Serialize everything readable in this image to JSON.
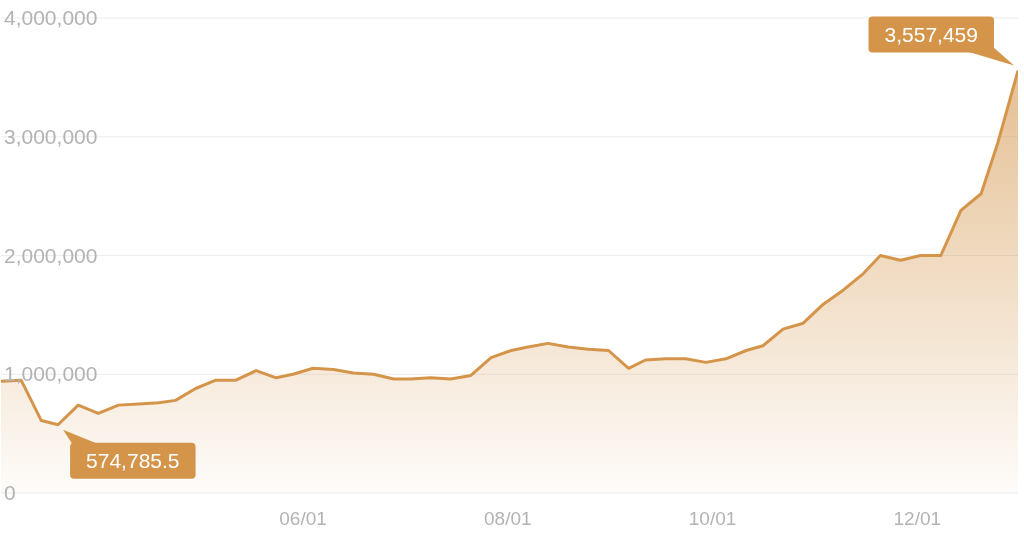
{
  "chart_data": {
    "type": "area",
    "color": "#d4954a",
    "x": [
      "--03-03",
      "--03-09",
      "--03-15",
      "--03-20",
      "--03-26",
      "--04-01",
      "--04-07",
      "--04-13",
      "--04-19",
      "--04-24",
      "--04-30",
      "--05-06",
      "--05-12",
      "--05-18",
      "--05-24",
      "--05-29",
      "--06-04",
      "--06-10",
      "--06-16",
      "--06-22",
      "--06-28",
      "--07-03",
      "--07-09",
      "--07-15",
      "--07-21",
      "--07-27",
      "--08-02",
      "--08-07",
      "--08-13",
      "--08-19",
      "--08-25",
      "--08-31",
      "--09-06",
      "--09-11",
      "--09-17",
      "--09-23",
      "--09-29",
      "--10-05",
      "--10-11",
      "--10-16",
      "--10-22",
      "--10-28",
      "--11-03",
      "--11-09",
      "--11-15",
      "--11-20",
      "--11-26",
      "--12-02",
      "--12-08",
      "--12-14",
      "--12-20",
      "--12-25",
      "--12-31"
    ],
    "values": [
      940000,
      950000,
      610000,
      574785.5,
      740000,
      670000,
      740000,
      750000,
      760000,
      780000,
      880000,
      950000,
      950000,
      1030000,
      970000,
      1000000,
      1050000,
      1040000,
      1010000,
      1000000,
      960000,
      960000,
      970000,
      960000,
      990000,
      1140000,
      1200000,
      1230000,
      1260000,
      1230000,
      1210000,
      1200000,
      1050000,
      1120000,
      1130000,
      1130000,
      1100000,
      1130000,
      1200000,
      1240000,
      1380000,
      1430000,
      1590000,
      1710000,
      1850000,
      2000000,
      1960000,
      2000000,
      2000000,
      2380000,
      2520000,
      2950000,
      3557459
    ],
    "value_labels": [
      null,
      null,
      null,
      "574,785.5",
      null,
      null,
      null,
      null,
      null,
      null,
      null,
      null,
      null,
      null,
      null,
      null,
      null,
      null,
      null,
      null,
      null,
      null,
      null,
      null,
      null,
      null,
      null,
      null,
      null,
      null,
      null,
      null,
      null,
      null,
      null,
      null,
      null,
      null,
      null,
      null,
      null,
      null,
      null,
      null,
      null,
      null,
      null,
      null,
      null,
      null,
      null,
      null,
      "3,557,459"
    ],
    "xlim": [
      "--03-03",
      "--12-31"
    ],
    "xticks": [
      {
        "value": "--06-01",
        "label": "06/01"
      },
      {
        "value": "--08-01",
        "label": "08/01"
      },
      {
        "value": "--10-01",
        "label": "10/01"
      },
      {
        "value": "--12-01",
        "label": "12/01"
      }
    ],
    "ylim": [
      0,
      4000000
    ],
    "yticks": [
      {
        "value": 0,
        "label": "0"
      },
      {
        "value": 1000000,
        "label": "1,000,000"
      },
      {
        "value": 2000000,
        "label": "2,000,000"
      },
      {
        "value": 3000000,
        "label": "3,000,000"
      },
      {
        "value": 4000000,
        "label": "4,000,000"
      }
    ],
    "grid": "y",
    "legend": false
  }
}
